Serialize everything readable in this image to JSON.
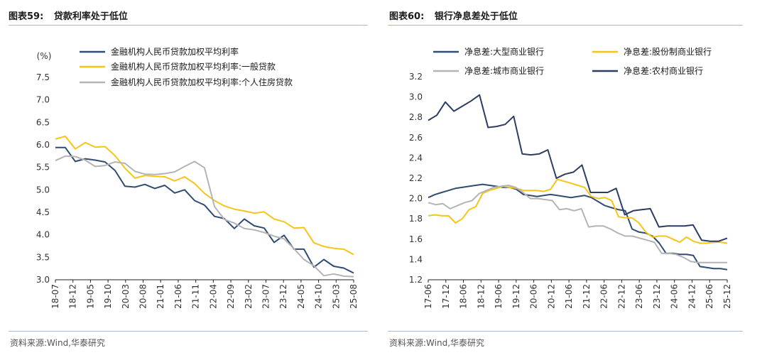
{
  "colors": {
    "navy": "#2f4d73",
    "gold": "#f5c518",
    "grey": "#b4b4b4",
    "darknavy": "#2c3d63"
  },
  "left": {
    "title_prefix": "图表59:",
    "title_text": "贷款利率处于低位",
    "source": "资料来源:Wind,华泰研究"
  },
  "right": {
    "title_prefix": "图表60:",
    "title_text": "银行净息差处于低位",
    "source": "资料来源:Wind,华泰研究"
  },
  "chart_data": [
    {
      "type": "line",
      "title": "贷款利率处于低位",
      "ylabel": "(%)",
      "ylim": [
        3.0,
        7.5
      ],
      "yticks": [
        "3.0",
        "3.5",
        "4.0",
        "4.5",
        "5.0",
        "5.5",
        "6.0",
        "6.5",
        "7.0",
        "7.5"
      ],
      "xtick_labels": [
        "18-07",
        "18-12",
        "19-05",
        "19-10",
        "20-03",
        "20-08",
        "21-01",
        "21-06",
        "21-11",
        "22-04",
        "22-09",
        "23-02",
        "23-07",
        "23-12",
        "24-05",
        "24-10",
        "25-03",
        "25-08"
      ],
      "x_start": "18-07",
      "x_end": "25-12",
      "legend_position": "top-left",
      "series": [
        {
          "name": "金融机构人民币贷款加权平均利率",
          "color": "#2f4d73",
          "values": [
            5.94,
            5.94,
            5.63,
            5.69,
            5.66,
            5.62,
            5.43,
            5.08,
            5.06,
            5.12,
            5.03,
            5.1,
            4.93,
            5.0,
            4.76,
            4.66,
            4.41,
            4.36,
            4.14,
            4.35,
            4.2,
            4.15,
            3.83,
            3.99,
            3.68,
            3.68,
            3.28,
            3.45,
            3.3,
            3.26,
            3.15
          ]
        },
        {
          "name": "金融机构人民币贷款加权平均利率:一般贷款",
          "color": "#f5c518",
          "values": [
            6.13,
            6.19,
            5.91,
            6.05,
            5.95,
            5.96,
            5.76,
            5.48,
            5.26,
            5.32,
            5.3,
            5.29,
            5.2,
            5.29,
            5.14,
            4.92,
            4.76,
            4.64,
            4.57,
            4.53,
            4.48,
            4.51,
            4.35,
            4.29,
            4.15,
            4.16,
            3.82,
            3.74,
            3.7,
            3.68,
            3.56
          ]
        },
        {
          "name": "金融机构人民币贷款加权平均利率:个人住房贷款",
          "color": "#b4b4b4",
          "values": [
            5.65,
            5.75,
            5.74,
            5.66,
            5.52,
            5.54,
            5.62,
            5.59,
            5.41,
            5.35,
            5.34,
            5.36,
            5.4,
            5.52,
            5.63,
            5.49,
            4.63,
            4.34,
            4.26,
            4.14,
            4.11,
            4.05,
            3.97,
            3.91,
            3.69,
            3.45,
            3.31,
            3.09,
            3.13,
            3.08,
            3.07
          ]
        }
      ]
    },
    {
      "type": "line",
      "title": "银行净息差处于低位",
      "ylabel": "",
      "ylim": [
        1.2,
        3.2
      ],
      "yticks": [
        "1.2",
        "1.4",
        "1.6",
        "1.8",
        "2.0",
        "2.2",
        "2.4",
        "2.6",
        "2.8",
        "3.0",
        "3.2"
      ],
      "xtick_labels": [
        "17-06",
        "17-12",
        "18-06",
        "18-12",
        "19-06",
        "19-12",
        "20-06",
        "20-12",
        "21-06",
        "21-12",
        "22-06",
        "22-12",
        "23-06",
        "23-12",
        "24-06",
        "24-12",
        "25-06",
        "25-12"
      ],
      "x_start": "17-06",
      "x_end": "25-12",
      "legend_position": "top",
      "series": [
        {
          "name": "净息差:大型商业银行",
          "color": "#2f4d73",
          "values": [
            2.01,
            2.04,
            2.06,
            2.08,
            2.1,
            2.11,
            2.12,
            2.13,
            2.14,
            2.13,
            2.12,
            2.11,
            2.11,
            2.09,
            2.04,
            2.03,
            2.02,
            2.03,
            2.04,
            2.03,
            2.02,
            2.01,
            2.02,
            2.03,
            2.01,
            1.97,
            1.93,
            1.91,
            1.89,
            1.88,
            1.7,
            1.67,
            1.66,
            1.63,
            1.56,
            1.46,
            1.46,
            1.45,
            1.45,
            1.44,
            1.33,
            1.32,
            1.31,
            1.31,
            1.3
          ]
        },
        {
          "name": "净息差:股份制商业银行",
          "color": "#f5c518",
          "values": [
            1.83,
            1.84,
            1.83,
            1.83,
            1.76,
            1.8,
            1.89,
            1.92,
            2.05,
            2.08,
            2.1,
            2.12,
            2.11,
            2.1,
            2.08,
            2.08,
            2.08,
            2.07,
            2.09,
            2.19,
            2.17,
            2.15,
            2.13,
            2.11,
            2.02,
            2.0,
            2.01,
            1.98,
            1.82,
            1.81,
            1.81,
            1.76,
            1.67,
            1.62,
            1.63,
            1.63,
            1.6,
            1.57,
            1.62,
            1.58,
            1.56,
            1.56,
            1.57,
            1.57,
            1.56
          ]
        },
        {
          "name": "净息差:城市商业银行",
          "color": "#b4b4b4",
          "values": [
            1.96,
            1.94,
            1.95,
            1.9,
            1.93,
            1.96,
            1.98,
            2.05,
            2.08,
            2.11,
            2.12,
            2.13,
            2.11,
            2.06,
            2.0,
            2.0,
            1.99,
            1.98,
            1.89,
            1.9,
            1.88,
            1.9,
            1.72,
            1.73,
            1.73,
            1.7,
            1.66,
            1.63,
            1.63,
            1.61,
            1.59,
            1.57,
            1.46,
            1.46,
            1.45,
            1.42,
            1.38,
            1.37,
            1.37,
            1.37,
            1.37,
            1.37
          ]
        },
        {
          "name": "净息差:农村商业银行",
          "color": "#2c3d63",
          "values": [
            2.77,
            2.82,
            2.95,
            2.86,
            2.91,
            2.96,
            3.02,
            2.7,
            2.71,
            2.73,
            2.81,
            2.44,
            2.43,
            2.44,
            2.48,
            2.2,
            2.24,
            2.26,
            2.33,
            2.06,
            2.06,
            2.06,
            2.1,
            1.84,
            1.88,
            1.89,
            1.9,
            1.72,
            1.73,
            1.73,
            1.73,
            1.74,
            1.59,
            1.58,
            1.58,
            1.61
          ]
        }
      ]
    }
  ]
}
